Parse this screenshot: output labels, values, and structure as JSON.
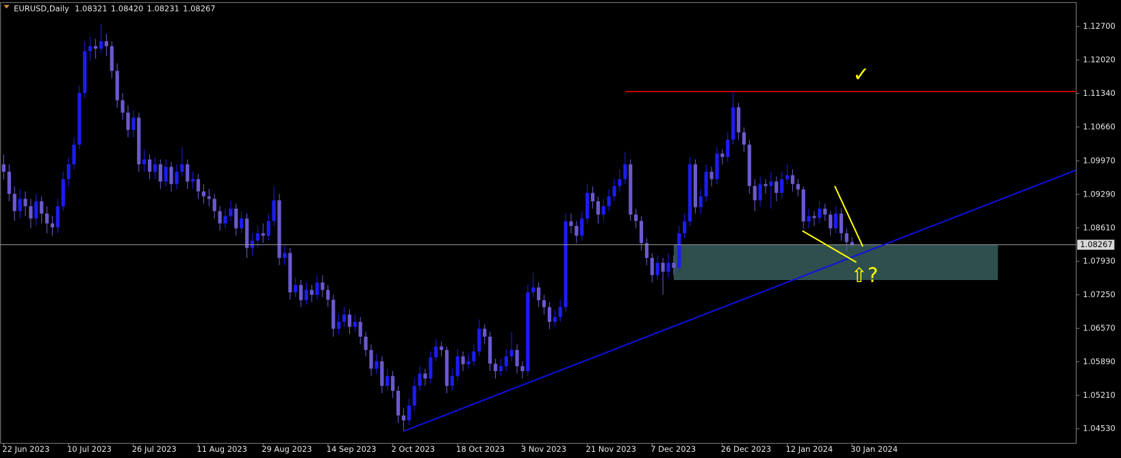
{
  "chart_data": {
    "type": "candlestick",
    "title": "EURUSD,Daily",
    "header_values": [
      "1.08321",
      "1.08420",
      "1.08231",
      "1.08267"
    ],
    "bull_color": "#1c1cf0",
    "bear_color": "#6a5acd",
    "ylim": [
      1.0424,
      1.1318
    ],
    "yticks": [
      {
        "value": 1.127,
        "label": "1.12700"
      },
      {
        "value": 1.1202,
        "label": "1.12020"
      },
      {
        "value": 1.1134,
        "label": "1.11340"
      },
      {
        "value": 1.1066,
        "label": "1.10660"
      },
      {
        "value": 1.0997,
        "label": "1.09970"
      },
      {
        "value": 1.0929,
        "label": "1.09290"
      },
      {
        "value": 1.0861,
        "label": "1.08610"
      },
      {
        "value": 1.0793,
        "label": "1.07930"
      },
      {
        "value": 1.0725,
        "label": "1.07250"
      },
      {
        "value": 1.0657,
        "label": "1.06570"
      },
      {
        "value": 1.0589,
        "label": "1.05890"
      },
      {
        "value": 1.0521,
        "label": "1.05210"
      },
      {
        "value": 1.0453,
        "label": "1.04530"
      }
    ],
    "current_price": {
      "value": 1.08267,
      "label": "1.08267"
    },
    "categories": [
      "22 Jun 2023",
      null,
      null,
      null,
      null,
      null,
      null,
      null,
      null,
      null,
      null,
      null,
      "10 Jul 2023",
      null,
      null,
      null,
      null,
      null,
      null,
      null,
      null,
      null,
      null,
      null,
      "26 Jul 2023",
      null,
      null,
      null,
      null,
      null,
      null,
      null,
      null,
      null,
      null,
      null,
      "11 Aug 2023",
      null,
      null,
      null,
      null,
      null,
      null,
      null,
      null,
      null,
      null,
      null,
      "29 Aug 2023",
      null,
      null,
      null,
      null,
      null,
      null,
      null,
      null,
      null,
      null,
      null,
      "14 Sep 2023",
      null,
      null,
      null,
      null,
      null,
      null,
      null,
      null,
      null,
      null,
      null,
      "2 Oct 2023",
      null,
      null,
      null,
      null,
      null,
      null,
      null,
      null,
      null,
      null,
      null,
      "18 Oct 2023",
      null,
      null,
      null,
      null,
      null,
      null,
      null,
      null,
      null,
      null,
      null,
      "3 Nov 2023",
      null,
      null,
      null,
      null,
      null,
      null,
      null,
      null,
      null,
      null,
      null,
      "21 Nov 2023",
      null,
      null,
      null,
      null,
      null,
      null,
      null,
      null,
      null,
      null,
      null,
      "7 Dec 2023",
      null,
      null,
      null,
      null,
      null,
      null,
      null,
      null,
      null,
      null,
      null,
      null,
      "26 Dec 2023",
      null,
      null,
      null,
      null,
      null,
      null,
      null,
      null,
      null,
      null,
      null,
      "12 Jan 2024",
      null,
      null,
      null,
      null,
      null,
      null,
      null,
      null,
      null,
      null,
      null,
      "30 Jan 2024"
    ],
    "candles": [
      [
        1.099,
        1.101,
        1.096,
        1.0975
      ],
      [
        1.0975,
        1.099,
        1.0915,
        1.093
      ],
      [
        1.093,
        1.0945,
        1.0875,
        1.0895
      ],
      [
        1.0895,
        1.094,
        1.088,
        1.092
      ],
      [
        1.092,
        1.0935,
        1.0885,
        1.0905
      ],
      [
        1.0905,
        1.092,
        1.086,
        1.088
      ],
      [
        1.088,
        1.093,
        1.0865,
        1.0915
      ],
      [
        1.0915,
        1.0925,
        1.087,
        1.089
      ],
      [
        1.089,
        1.0905,
        1.085,
        1.087
      ],
      [
        1.087,
        1.0885,
        1.0845,
        1.0862
      ],
      [
        1.0862,
        1.092,
        1.085,
        1.0905
      ],
      [
        1.0905,
        1.0975,
        1.0895,
        1.096
      ],
      [
        1.096,
        1.1005,
        1.0945,
        1.099
      ],
      [
        1.099,
        1.1045,
        1.098,
        1.103
      ],
      [
        1.103,
        1.115,
        1.102,
        1.1135
      ],
      [
        1.1135,
        1.124,
        1.1125,
        1.122
      ],
      [
        1.122,
        1.125,
        1.12,
        1.123
      ],
      [
        1.123,
        1.1245,
        1.1205,
        1.1225
      ],
      [
        1.1225,
        1.1275,
        1.1215,
        1.124
      ],
      [
        1.124,
        1.1255,
        1.121,
        1.123
      ],
      [
        1.123,
        1.124,
        1.1165,
        1.118
      ],
      [
        1.118,
        1.1195,
        1.1105,
        1.112
      ],
      [
        1.112,
        1.1135,
        1.108,
        1.1095
      ],
      [
        1.1095,
        1.111,
        1.1045,
        1.106
      ],
      [
        1.106,
        1.11,
        1.1045,
        1.1085
      ],
      [
        1.1085,
        1.1095,
        1.0975,
        1.099
      ],
      [
        1.099,
        1.102,
        1.0975,
        1.1
      ],
      [
        1.1,
        1.101,
        1.096,
        1.0975
      ],
      [
        1.0975,
        1.1005,
        1.096,
        1.099
      ],
      [
        1.099,
        1.1,
        1.094,
        1.0955
      ],
      [
        1.0955,
        1.1,
        1.0945,
        1.0985
      ],
      [
        1.0985,
        1.0995,
        1.0935,
        1.095
      ],
      [
        1.095,
        1.099,
        1.094,
        1.0975
      ],
      [
        1.0975,
        1.1025,
        1.0965,
        1.099
      ],
      [
        1.099,
        1.1,
        1.094,
        1.0955
      ],
      [
        1.0955,
        1.0975,
        1.094,
        1.096
      ],
      [
        1.096,
        1.097,
        1.092,
        1.0935
      ],
      [
        1.0935,
        1.095,
        1.091,
        1.0925
      ],
      [
        1.0925,
        1.094,
        1.0905,
        1.092
      ],
      [
        1.092,
        1.093,
        1.088,
        1.0895
      ],
      [
        1.0895,
        1.0905,
        1.0855,
        1.087
      ],
      [
        1.087,
        1.09,
        1.086,
        1.0885
      ],
      [
        1.0885,
        1.0915,
        1.0875,
        1.09
      ],
      [
        1.09,
        1.091,
        1.0845,
        1.086
      ],
      [
        1.086,
        1.0895,
        1.085,
        1.088
      ],
      [
        1.088,
        1.089,
        1.08,
        1.082
      ],
      [
        1.082,
        1.085,
        1.0805,
        1.0835
      ],
      [
        1.0835,
        1.0865,
        1.082,
        1.085
      ],
      [
        1.085,
        1.087,
        1.083,
        1.0845
      ],
      [
        1.0845,
        1.089,
        1.0835,
        1.0875
      ],
      [
        1.0875,
        1.0945,
        1.0865,
        1.0917
      ],
      [
        1.0917,
        1.093,
        1.0785,
        1.08
      ],
      [
        1.08,
        1.0825,
        1.0785,
        1.081
      ],
      [
        1.081,
        1.082,
        1.0715,
        1.073
      ],
      [
        1.073,
        1.076,
        1.072,
        1.0745
      ],
      [
        1.0745,
        1.0755,
        1.07,
        1.0714
      ],
      [
        1.0714,
        1.075,
        1.0705,
        1.0735
      ],
      [
        1.0735,
        1.0745,
        1.071,
        1.0725
      ],
      [
        1.0725,
        1.0765,
        1.0715,
        1.075
      ],
      [
        1.075,
        1.0765,
        1.072,
        1.0735
      ],
      [
        1.0735,
        1.0745,
        1.07,
        1.0715
      ],
      [
        1.0715,
        1.0725,
        1.064,
        1.0656
      ],
      [
        1.0656,
        1.0685,
        1.0645,
        1.067
      ],
      [
        1.067,
        1.07,
        1.066,
        1.0685
      ],
      [
        1.0685,
        1.0695,
        1.0645,
        1.066
      ],
      [
        1.066,
        1.0685,
        1.065,
        1.067
      ],
      [
        1.067,
        1.068,
        1.0625,
        1.064
      ],
      [
        1.064,
        1.065,
        1.06,
        1.0613
      ],
      [
        1.0613,
        1.0625,
        1.056,
        1.0575
      ],
      [
        1.0575,
        1.0605,
        1.0565,
        1.059
      ],
      [
        1.059,
        1.06,
        1.0525,
        1.054
      ],
      [
        1.054,
        1.0575,
        1.053,
        1.056
      ],
      [
        1.056,
        1.057,
        1.0515,
        1.053
      ],
      [
        1.053,
        1.054,
        1.0465,
        1.048
      ],
      [
        1.048,
        1.0495,
        1.0448,
        1.047
      ],
      [
        1.047,
        1.0515,
        1.046,
        1.05
      ],
      [
        1.05,
        1.0555,
        1.049,
        1.054
      ],
      [
        1.054,
        1.058,
        1.053,
        1.0565
      ],
      [
        1.0565,
        1.0575,
        1.054,
        1.0555
      ],
      [
        1.0555,
        1.061,
        1.0545,
        1.0598
      ],
      [
        1.0598,
        1.0635,
        1.059,
        1.062
      ],
      [
        1.062,
        1.063,
        1.06,
        1.0613
      ],
      [
        1.0613,
        1.062,
        1.0525,
        1.054
      ],
      [
        1.054,
        1.0575,
        1.053,
        1.056
      ],
      [
        1.056,
        1.0615,
        1.055,
        1.06
      ],
      [
        1.06,
        1.061,
        1.057,
        1.0584
      ],
      [
        1.0584,
        1.0605,
        1.0575,
        1.059
      ],
      [
        1.059,
        1.0625,
        1.058,
        1.061
      ],
      [
        1.061,
        1.0675,
        1.06,
        1.0656
      ],
      [
        1.0656,
        1.0665,
        1.0625,
        1.064
      ],
      [
        1.064,
        1.065,
        1.057,
        1.0585
      ],
      [
        1.0585,
        1.0595,
        1.0555,
        1.057
      ],
      [
        1.057,
        1.0595,
        1.056,
        1.058
      ],
      [
        1.058,
        1.0615,
        1.057,
        1.06
      ],
      [
        1.06,
        1.065,
        1.059,
        1.0613
      ],
      [
        1.0613,
        1.0625,
        1.0565,
        1.058
      ],
      [
        1.058,
        1.059,
        1.0555,
        1.057
      ],
      [
        1.057,
        1.0745,
        1.056,
        1.073
      ],
      [
        1.073,
        1.077,
        1.072,
        1.074
      ],
      [
        1.074,
        1.075,
        1.07,
        1.0714
      ],
      [
        1.0714,
        1.0725,
        1.0685,
        1.07
      ],
      [
        1.07,
        1.071,
        1.0655,
        1.067
      ],
      [
        1.067,
        1.0695,
        1.066,
        1.068
      ],
      [
        1.068,
        1.0715,
        1.067,
        1.07
      ],
      [
        1.07,
        1.089,
        1.069,
        1.0874
      ],
      [
        1.0874,
        1.089,
        1.085,
        1.0865
      ],
      [
        1.0865,
        1.0875,
        1.083,
        1.0845
      ],
      [
        1.0845,
        1.0895,
        1.0835,
        1.088
      ],
      [
        1.088,
        1.095,
        1.087,
        1.0932
      ],
      [
        1.0932,
        1.0945,
        1.09,
        1.0915
      ],
      [
        1.0915,
        1.0925,
        1.087,
        1.0888
      ],
      [
        1.0888,
        1.092,
        1.0875,
        1.0905
      ],
      [
        1.0905,
        1.094,
        1.0895,
        1.0925
      ],
      [
        1.0925,
        1.096,
        1.0915,
        1.0946
      ],
      [
        1.0946,
        1.098,
        1.0935,
        1.096
      ],
      [
        1.096,
        1.1015,
        1.095,
        1.099
      ],
      [
        1.099,
        1.1,
        1.0875,
        1.0888
      ],
      [
        1.0888,
        1.09,
        1.086,
        1.0875
      ],
      [
        1.0875,
        1.0885,
        1.0815,
        1.083
      ],
      [
        1.083,
        1.084,
        1.0785,
        1.08
      ],
      [
        1.08,
        1.081,
        1.075,
        1.0765
      ],
      [
        1.0765,
        1.0805,
        1.0755,
        1.079
      ],
      [
        1.079,
        1.08,
        1.0725,
        1.0772
      ],
      [
        1.0772,
        1.081,
        1.076,
        1.079
      ],
      [
        1.079,
        1.0805,
        1.0765,
        1.078
      ],
      [
        1.078,
        1.0865,
        1.077,
        1.085
      ],
      [
        1.085,
        1.089,
        1.084,
        1.0874
      ],
      [
        1.0874,
        1.1005,
        1.0865,
        1.099
      ],
      [
        1.099,
        1.1,
        1.089,
        1.0903
      ],
      [
        1.0903,
        1.094,
        1.089,
        1.0925
      ],
      [
        1.0925,
        1.099,
        1.0915,
        1.0975
      ],
      [
        1.0975,
        1.0985,
        1.0945,
        1.096
      ],
      [
        1.096,
        1.1025,
        1.095,
        1.1012
      ],
      [
        1.1012,
        1.102,
        1.099,
        1.1005
      ],
      [
        1.1005,
        1.1055,
        1.0995,
        1.104
      ],
      [
        1.104,
        1.1139,
        1.103,
        1.1106
      ],
      [
        1.1106,
        1.1115,
        1.104,
        1.1055
      ],
      [
        1.1055,
        1.1065,
        1.1015,
        1.103
      ],
      [
        1.103,
        1.104,
        1.093,
        1.0946
      ],
      [
        1.0946,
        1.096,
        1.0895,
        1.0917
      ],
      [
        1.0917,
        1.0965,
        1.0905,
        1.095
      ],
      [
        1.095,
        1.096,
        1.093,
        1.0946
      ],
      [
        1.0946,
        1.0975,
        1.09,
        1.0955
      ],
      [
        1.0955,
        1.0965,
        1.0915,
        1.0932
      ],
      [
        1.0932,
        1.0975,
        1.092,
        1.096
      ],
      [
        1.096,
        1.099,
        1.095,
        1.0968
      ],
      [
        1.0968,
        1.098,
        1.0935,
        1.095
      ],
      [
        1.095,
        1.096,
        1.0925,
        1.0939
      ],
      [
        1.0939,
        1.0945,
        1.086,
        1.0874
      ],
      [
        1.0874,
        1.09,
        1.086,
        1.0885
      ],
      [
        1.0885,
        1.0895,
        1.0865,
        1.0881
      ],
      [
        1.0881,
        1.0915,
        1.087,
        1.09
      ],
      [
        1.09,
        1.091,
        1.0875,
        1.0888
      ],
      [
        1.0888,
        1.0895,
        1.0845,
        1.086
      ],
      [
        1.086,
        1.0905,
        1.085,
        1.089
      ],
      [
        1.089,
        1.09,
        1.0835,
        1.085
      ],
      [
        1.085,
        1.086,
        1.0815,
        1.0832
      ],
      [
        1.08321,
        1.0842,
        1.08231,
        1.08267
      ]
    ],
    "zone": {
      "from": 124,
      "to": 184,
      "top": 1.0827,
      "bottom": 1.0755,
      "color": "#2f4f4f"
    },
    "level": {
      "from": 115,
      "price": 1.1138,
      "color": "#ff0000"
    },
    "trendline": {
      "from": [
        74,
        1.0448
      ],
      "to": [
        198.4,
        1.0978
      ],
      "color": "#1010e0"
    },
    "marker_lines": {
      "color": "#ffff00",
      "lines": [
        {
          "from": [
            147.8,
            1.0855
          ],
          "to": [
            157.8,
            1.0791
          ]
        },
        {
          "from": [
            153.8,
            1.0946
          ],
          "to": [
            159,
            1.0823
          ]
        }
      ]
    },
    "annotations": [
      {
        "text": "✓",
        "at": [
          158.7,
          1.117
        ]
      },
      {
        "text": "⇧?",
        "at": [
          159.3,
          1.0762
        ]
      }
    ]
  }
}
